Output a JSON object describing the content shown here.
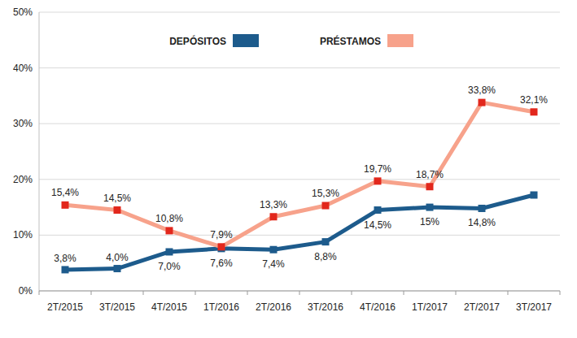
{
  "chart_data": {
    "type": "line",
    "categories": [
      "2T/2015",
      "3T/2015",
      "4T/2015",
      "1T/2016",
      "2T/2016",
      "3T/2016",
      "4T/2016",
      "1T/2017",
      "2T/2017",
      "3T/2017"
    ],
    "series": [
      {
        "name": "DEPÓSITOS",
        "color": "#1d5b8c",
        "marker": "square",
        "line_style": "solid",
        "values": [
          3.8,
          4.0,
          7.0,
          7.6,
          7.4,
          8.8,
          14.5,
          15,
          14.8,
          17.2
        ],
        "value_labels": [
          "3,8%",
          "4,0%",
          "7,0%",
          "7,6%",
          "7,4%",
          "8,8%",
          "14,5%",
          "15%",
          "14,8%",
          null
        ]
      },
      {
        "name": "PRÉSTAMOS",
        "color": "#f7a28b",
        "marker": "square",
        "line_style": "solid",
        "values": [
          15.4,
          14.5,
          10.8,
          7.9,
          13.3,
          15.3,
          19.7,
          18.7,
          33.8,
          32.1
        ],
        "value_labels": [
          "15,4%",
          "14,5%",
          "10,8%",
          "7,9%",
          "13,3%",
          "15,3%",
          "19,7%",
          "18,7%",
          "33,8%",
          "32,1%"
        ]
      }
    ],
    "ylim": [
      0,
      50
    ],
    "yticks": [
      {
        "value": 0,
        "label": "0%"
      },
      {
        "value": 10,
        "label": "10%"
      },
      {
        "value": 20,
        "label": "20%"
      },
      {
        "value": 30,
        "label": "30%"
      },
      {
        "value": 40,
        "label": "40%"
      },
      {
        "value": 50,
        "label": "50%"
      }
    ],
    "grid": true,
    "legend": "top",
    "data_labels": true
  }
}
